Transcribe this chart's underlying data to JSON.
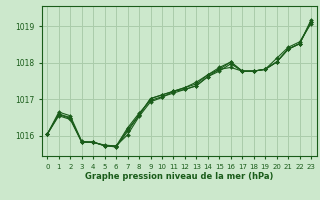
{
  "bg_color": "#cce8cc",
  "grid_color": "#aaccaa",
  "line_color": "#1a5c1a",
  "marker_color": "#1a5c1a",
  "title": "Graphe pression niveau de la mer (hPa)",
  "ylim": [
    1015.45,
    1019.55
  ],
  "xlim": [
    -0.5,
    23.5
  ],
  "yticks": [
    1016,
    1017,
    1018,
    1019
  ],
  "xticks": [
    0,
    1,
    2,
    3,
    4,
    5,
    6,
    7,
    8,
    9,
    10,
    11,
    12,
    13,
    14,
    15,
    16,
    17,
    18,
    19,
    20,
    21,
    22,
    23
  ],
  "series": [
    [
      1016.05,
      1016.65,
      1016.55,
      1015.85,
      1015.82,
      1015.75,
      1015.72,
      1016.22,
      1016.62,
      1016.97,
      1017.07,
      1017.17,
      1017.27,
      1017.37,
      1017.62,
      1017.77,
      1017.97,
      1017.77,
      1017.77,
      1017.82,
      1018.02,
      1018.37,
      1018.52,
      1019.17
    ],
    [
      1016.05,
      1016.58,
      1016.48,
      1015.83,
      1015.83,
      1015.73,
      1015.73,
      1016.03,
      1016.53,
      1016.93,
      1017.05,
      1017.22,
      1017.27,
      1017.37,
      1017.62,
      1017.82,
      1017.87,
      1017.77,
      1017.77,
      1017.82,
      1018.12,
      1018.42,
      1018.57,
      1019.07
    ],
    [
      1016.05,
      1016.55,
      1016.45,
      1015.83,
      1015.83,
      1015.73,
      1015.7,
      1016.17,
      1016.57,
      1017.02,
      1017.12,
      1017.22,
      1017.32,
      1017.47,
      1017.67,
      1017.87,
      1018.02,
      1017.77,
      1017.77,
      1017.82,
      1018.02,
      1018.37,
      1018.52,
      1019.12
    ],
    [
      1016.05,
      1016.6,
      1016.5,
      1015.83,
      1015.83,
      1015.73,
      1015.7,
      1016.12,
      1016.57,
      1017.02,
      1017.12,
      1017.22,
      1017.32,
      1017.42,
      1017.67,
      1017.82,
      1018.02,
      1017.77,
      1017.77,
      1017.82,
      1018.02,
      1018.37,
      1018.52,
      1019.12
    ]
  ]
}
